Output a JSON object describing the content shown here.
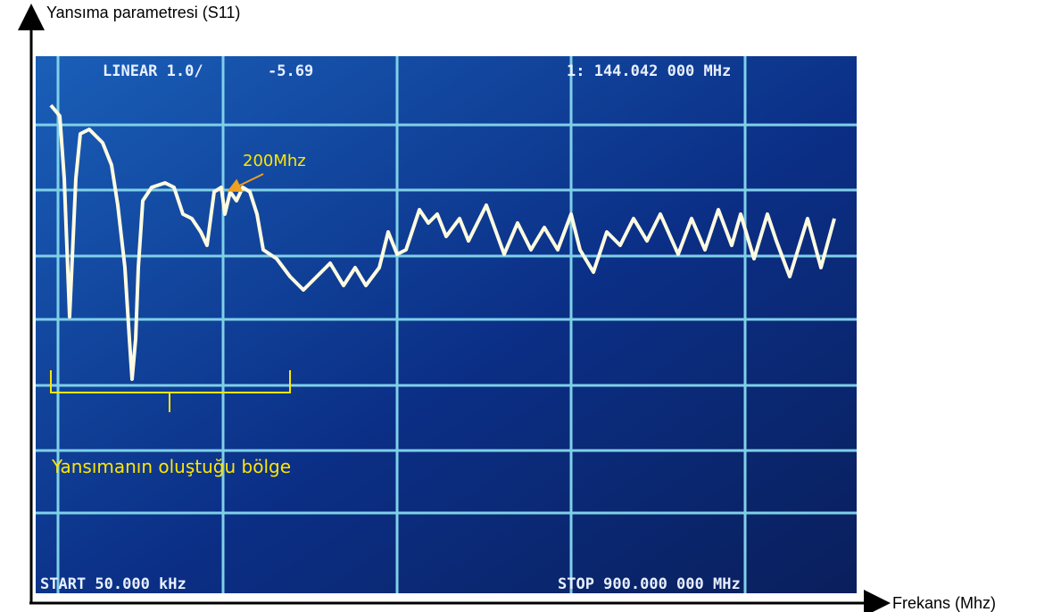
{
  "axis_labels": {
    "y": "Yansıma parametresi (S11)",
    "x": "Frekans (Mhz)"
  },
  "screen": {
    "top_left": "LINEAR 1.0/",
    "top_value": "-5.69",
    "marker": "1: 144.042 000 MHz",
    "start": "START 50.000 kHz",
    "stop": "STOP 900.000 000 MHz"
  },
  "annotations": {
    "point": "200Mhz",
    "region": "Yansımanın oluştuğu bölge"
  }
}
